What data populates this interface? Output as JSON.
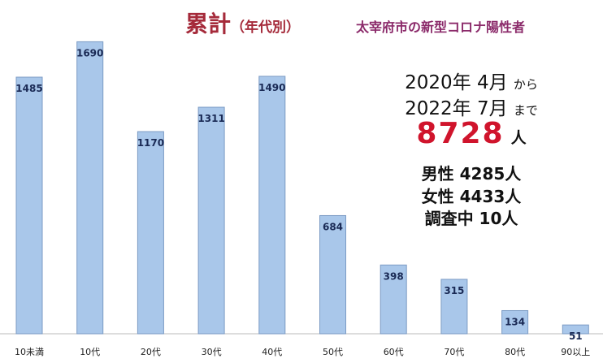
{
  "title": "累計",
  "title_paren": "（年代別）",
  "subtitle": "太宰府市の新型コロナ陽性者",
  "period": {
    "from_value": "2020年 4月",
    "from_suffix": "から",
    "to_value": "2022年 7月",
    "to_suffix": "まで"
  },
  "total": {
    "value": "8728",
    "unit": "人"
  },
  "breakdown": {
    "male": "男性 4285人",
    "female": "女性 4433人",
    "unknown": "調査中 10人"
  },
  "colors": {
    "bar_fill": "#a9c7ea",
    "bar_stroke": "#7c9bc4",
    "title": "#a52a3a",
    "total": "#d0142c"
  },
  "chart_data": {
    "type": "bar",
    "categories": [
      "10未満",
      "10代",
      "20代",
      "30代",
      "40代",
      "50代",
      "60代",
      "70代",
      "80代",
      "90以上"
    ],
    "values": [
      1485,
      1690,
      1170,
      1311,
      1490,
      684,
      398,
      315,
      134,
      51
    ],
    "title": "累計（年代別）",
    "xlabel": "",
    "ylabel": "",
    "ylim": [
      0,
      1800
    ],
    "grid": false,
    "legend": "none"
  }
}
